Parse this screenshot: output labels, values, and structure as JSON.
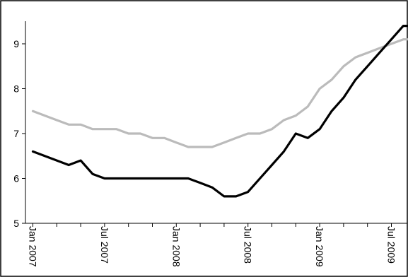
{
  "chart_data": {
    "type": "line",
    "title": "",
    "xlabel": "",
    "ylabel": "",
    "ylim": [
      5,
      9.5
    ],
    "yticks": [
      5,
      6,
      7,
      8,
      9
    ],
    "x_ticks": [
      "2007-01",
      "2007-07",
      "2008-01",
      "2008-07",
      "2009-01",
      "2009-07"
    ],
    "x_tick_labels": [
      "Jan 2007",
      "Jul 2007",
      "Jan 2008",
      "Jul 2008",
      "Jan 2009",
      "Jul 2009"
    ],
    "grid": false,
    "legend": "none",
    "x": [
      "2007-01",
      "2007-02",
      "2007-03",
      "2007-04",
      "2007-05",
      "2007-06",
      "2007-07",
      "2007-08",
      "2007-09",
      "2007-10",
      "2007-11",
      "2007-12",
      "2008-01",
      "2008-02",
      "2008-03",
      "2008-04",
      "2008-05",
      "2008-06",
      "2008-07",
      "2008-08",
      "2008-09",
      "2008-10",
      "2008-11",
      "2008-12",
      "2009-01",
      "2009-02",
      "2009-03",
      "2009-04",
      "2009-05",
      "2009-06",
      "2009-07",
      "2009-08",
      "2009-09"
    ],
    "series": [
      {
        "color": "#bbbbbb",
        "values": [
          7.5,
          7.4,
          7.3,
          7.2,
          7.2,
          7.1,
          7.1,
          7.1,
          7.0,
          7.0,
          6.9,
          6.9,
          6.8,
          6.7,
          6.7,
          6.7,
          6.8,
          6.9,
          7.0,
          7.0,
          7.1,
          7.3,
          7.4,
          7.6,
          8.0,
          8.2,
          8.5,
          8.7,
          8.8,
          8.9,
          9.0,
          9.1,
          9.1
        ]
      },
      {
        "color": "#000000",
        "values": [
          6.6,
          6.5,
          6.4,
          6.3,
          6.4,
          6.1,
          6.0,
          6.0,
          6.0,
          6.0,
          6.0,
          6.0,
          6.0,
          6.0,
          5.9,
          5.8,
          5.6,
          5.6,
          5.7,
          6.0,
          6.3,
          6.6,
          7.0,
          6.9,
          7.1,
          7.5,
          7.8,
          8.2,
          8.5,
          8.8,
          9.1,
          9.4,
          9.4
        ]
      }
    ]
  }
}
